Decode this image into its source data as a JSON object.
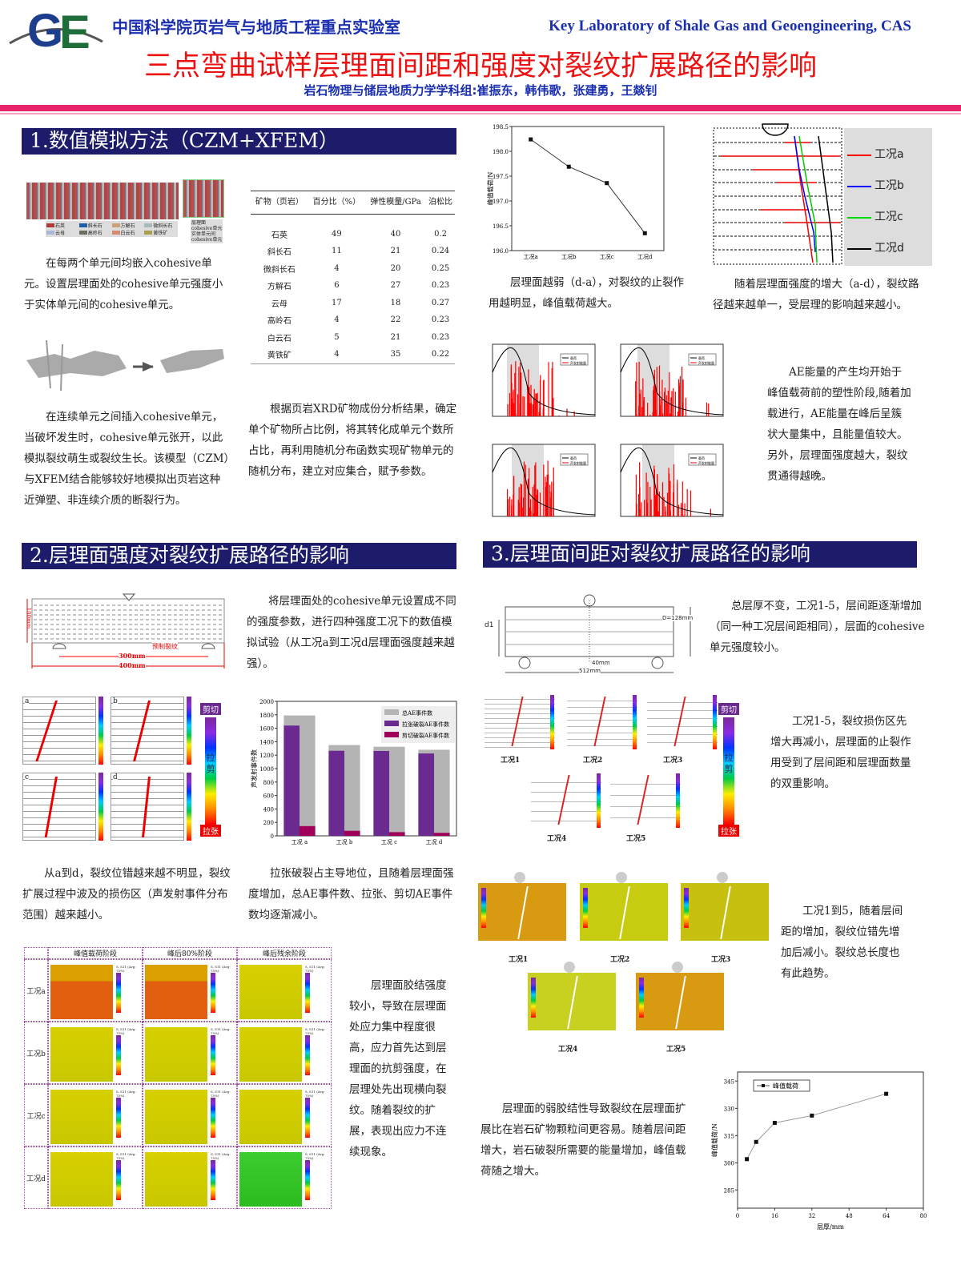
{
  "header": {
    "logo_text": "GE",
    "lab_cn": "中国科学院页岩气与地质工程重点实验室",
    "lab_en": "Key Laboratory of Shale Gas and Geoengineering, CAS",
    "title": "三点弯曲试样层理面间距和强度对裂纹扩展路径的影响",
    "authors": "岩石物理与储层地质力学学科组:崔振东，韩伟歌，张建勇，王燚钊",
    "accent": "#e8246a",
    "title_color": "#ee1111",
    "blue": "#1a2fb0"
  },
  "sec1": {
    "title": "1.数值模拟方法（CZM+XFEM）",
    "mineral_legend": [
      "石英",
      "斜长石",
      "方解石",
      "微斜长石",
      "云母",
      "高岭石",
      "白云石",
      "黄铁矿"
    ],
    "mineral_colors": [
      "#b03a3a",
      "#1d5ea8",
      "#c9a07a",
      "#a9b8b8",
      "#a9b8d8",
      "#6e6e60",
      "#d88a70",
      "#a8a050"
    ],
    "inset_legend": [
      "层理面",
      "cohesive单元",
      "实体单元间",
      "cohesive单元"
    ],
    "text1": "在每两个单元间均嵌入cohesive单元。设置层理面处的cohesive单元强度小于实体单元间的cohesive单元。",
    "text2": "在连续单元之间插入cohesive单元，当破坏发生时，cohesive单元张开，以此模拟裂纹萌生或裂纹生长。该模型（CZM）与XFEM结合能够较好地模拟出页岩这种近弹塑、非连续介质的断裂行为。",
    "table": {
      "headers": [
        "矿物（页岩）",
        "百分比（%）",
        "弹性模量/GPa",
        "泊松比"
      ],
      "rows": [
        [
          "石英",
          "49",
          "40",
          "0.2"
        ],
        [
          "斜长石",
          "11",
          "21",
          "0.24"
        ],
        [
          "微斜长石",
          "4",
          "20",
          "0.25"
        ],
        [
          "方解石",
          "6",
          "27",
          "0.23"
        ],
        [
          "云母",
          "17",
          "18",
          "0.27"
        ],
        [
          "高岭石",
          "4",
          "22",
          "0.23"
        ],
        [
          "白云石",
          "5",
          "21",
          "0.23"
        ],
        [
          "黄铁矿",
          "4",
          "35",
          "0.22"
        ]
      ]
    },
    "text3": "根据页岩XRD矿物成份分析结果，确定单个矿物所占比例，将其转化成单元个数所占比，再利用随机分布函数实现矿物单元的随机分布，建立对应集合，赋予参数。"
  },
  "right_top": {
    "text4": "层理面越弱（d-a），对裂纹的止裂作用越明显，峰值载荷越大。",
    "crack_legend": [
      "工况a",
      "工况b",
      "工况c",
      "工况d"
    ],
    "crack_colors": [
      "#ff0000",
      "#0000ff",
      "#00dd00",
      "#000000"
    ],
    "text5": "随着层理面强度的增大（a-d），裂纹路径越来越单一，受层理的影响越来越小。",
    "ae_legend": [
      "载荷",
      "声发射能量"
    ],
    "text6": "AE能量的产生均开始于峰值载荷前的塑性阶段,随着加载进行，AE能量在峰后呈簇状大量集中，且能量值较大。另外，层理面强度越大，裂纹贯通得越晚。"
  },
  "sec2": {
    "title": "2.层理面强度对裂纹扩展路径的影响",
    "beam_labels": {
      "height": "100mm",
      "notch": "预制裂纹",
      "span": "300mm",
      "length": "400mm"
    },
    "text7": "将层理面处的cohesive单元设置成不同的强度参数，进行四种强度工况下的数值模拟试验（从工况a到工况d层理面强度越来越强）。",
    "panel_labels": [
      "a",
      "b",
      "c",
      "d"
    ],
    "colorbar_labels": {
      "top": "剪切",
      "mid": "拉剪",
      "bottom": "拉张"
    },
    "text8": "从a到d，裂纹位错越来越不明显，裂纹扩展过程中波及的损伤区（声发射事件分布范围）越来越小。",
    "text9": "拉张破裂占主导地位，且随着层理面强度增加，总AE事件数、拉张、剪切AE事件数均逐渐减小。",
    "stress_cols": [
      "峰值载荷阶段",
      "峰后80%阶段",
      "峰后残余阶段"
    ],
    "stress_rows": [
      "工况a",
      "工况b",
      "工况c",
      "工况d"
    ],
    "stress_legend_title": "S, S11 (Avg: 75%)",
    "text10": "层理面胶结强度较小，导致在层理面处应力集中程度很高，应力首先达到层理面的抗剪强度，在层理处先出现横向裂纹。随着裂纹的扩展，表现出应力不连续现象。"
  },
  "sec3": {
    "title": "3.层理面间距对裂纹扩展路径的影响",
    "beam_labels": {
      "d1": "d1",
      "depth": "D=128mm",
      "offset": "40mm",
      "length": "512mm"
    },
    "text11": "总层厚不变，工况1-5，层间距逐渐增加（同一种工况层间距相同），层面的cohesive单元强度较小。",
    "case_labels": [
      "工况1",
      "工况2",
      "工况3",
      "工况4",
      "工况5"
    ],
    "colorbar_labels": {
      "top": "剪切",
      "mid": "拉剪",
      "bottom": "拉张"
    },
    "text12": "工况1-5，裂纹损伤区先增大再减小，层理面的止裂作用受到了层间距和层理面数量的双重影响。",
    "text13": "工况1到5，随着层间距的增加，裂纹位错先增加后减小。裂纹总长度也有此趋势。",
    "text14": "层理面的弱胶结性导致裂纹在层理面扩展比在岩石矿物颗粒间更容易。随着层间距增大，岩石破裂所需要的能量增加，峰值载荷随之增大。"
  },
  "chart_data": [
    {
      "type": "line",
      "categories": [
        "工况a",
        "工况b",
        "工况c",
        "工况d"
      ],
      "values": [
        198.24,
        197.69,
        197.36,
        196.35
      ],
      "ylabel": "峰值载荷/N",
      "ylim": [
        196.0,
        198.5
      ],
      "yticks": [
        "196.0",
        "196.5",
        "197.0",
        "197.5",
        "198.0",
        "198.5"
      ],
      "grid": false
    },
    {
      "type": "bar",
      "categories": [
        "工况 a",
        "工况 b",
        "工况 c",
        "工况 d"
      ],
      "series": [
        {
          "name": "总AE事件数",
          "values": [
            1790,
            1350,
            1325,
            1280
          ],
          "color": "#b4b4b4"
        },
        {
          "name": "拉张破裂AE事件数",
          "values": [
            1640,
            1265,
            1262,
            1225
          ],
          "color": "#6a2a90"
        },
        {
          "name": "剪切破裂AE事件数",
          "values": [
            145,
            75,
            55,
            45
          ],
          "color": "#a0005a"
        }
      ],
      "ylabel": "声发射事件数",
      "ylim": [
        0,
        2000
      ],
      "yticks": [
        "0",
        "200",
        "400",
        "600",
        "800",
        "1000",
        "1200",
        "1400",
        "1600",
        "1800",
        "2000"
      ],
      "legend": "top-right",
      "grid": false
    },
    {
      "type": "line",
      "x": [
        4,
        8,
        16,
        32,
        64
      ],
      "values": [
        302,
        311.5,
        322,
        326,
        338
      ],
      "series_name": "峰值载荷",
      "xlabel": "层厚/mm",
      "ylabel": "峰值载荷/N",
      "xlim": [
        0,
        80
      ],
      "ylim": [
        275,
        350
      ],
      "xticks": [
        "0",
        "16",
        "32",
        "48",
        "64",
        "80"
      ],
      "yticks": [
        "285",
        "300",
        "315",
        "330",
        "345"
      ],
      "legend": "top-left",
      "grid": false
    }
  ]
}
